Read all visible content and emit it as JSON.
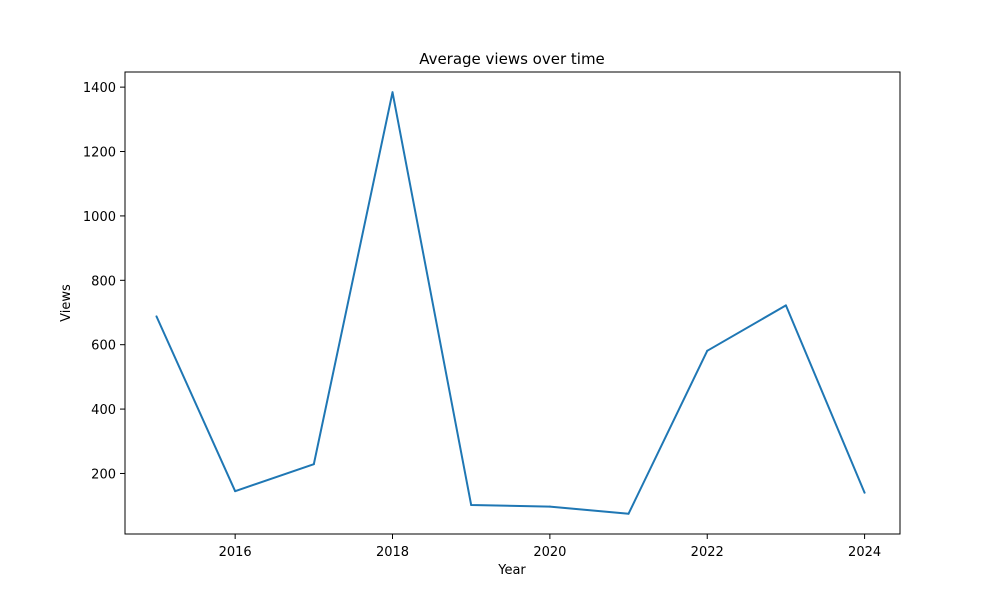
{
  "chart_data": {
    "type": "line",
    "title": "Average views over time",
    "xlabel": "Year",
    "ylabel": "Views",
    "x": [
      2015,
      2016,
      2017,
      2018,
      2019,
      2020,
      2021,
      2022,
      2023,
      2024
    ],
    "series": [
      {
        "values": [
          688,
          145,
          229,
          1384,
          102,
          97,
          75,
          581,
          722,
          140
        ]
      }
    ],
    "xlim": [
      2014.6,
      2024.45
    ],
    "ylim": [
      12,
      1447
    ],
    "xticks": [
      2016,
      2018,
      2020,
      2022,
      2024
    ],
    "yticks": [
      200,
      400,
      600,
      800,
      1000,
      1200,
      1400
    ],
    "grid": false,
    "line_color": "#1f77b4"
  }
}
